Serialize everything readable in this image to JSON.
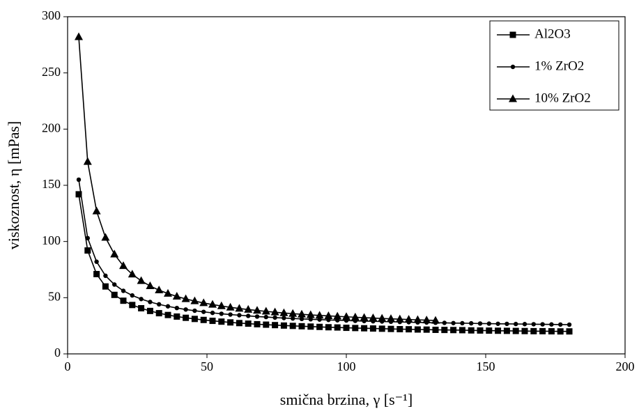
{
  "chart_data": {
    "type": "line",
    "xlabel": "smična brzina,  γ [s⁻¹]",
    "ylabel": "viskoznost,  η [mPas]",
    "xlim": [
      0,
      200
    ],
    "xticks": [
      0,
      50,
      100,
      150,
      200
    ],
    "ylim": [
      0,
      300
    ],
    "yticks": [
      0,
      50,
      100,
      150,
      200,
      250,
      300
    ],
    "legend": "upper right",
    "x": [
      4,
      7.2,
      10.4,
      13.6,
      16.8,
      20,
      23.2,
      26.4,
      29.6,
      32.8,
      36,
      39.2,
      42.4,
      45.6,
      48.8,
      52,
      55.2,
      58.4,
      61.6,
      64.8,
      68,
      71.2,
      74.4,
      77.6,
      80.8,
      84,
      87.2,
      90.4,
      93.6,
      96.8,
      100,
      103.2,
      106.4,
      109.6,
      112.8,
      116,
      119.2,
      122.4,
      125.6,
      128.8,
      132,
      135.2,
      138.4,
      141.6,
      144.8,
      148,
      151.2,
      154.4,
      157.6,
      160.8,
      164,
      167.2,
      170.4,
      173.6,
      176.8,
      180
    ],
    "series": [
      {
        "name": "Al2O3",
        "color": "#000000",
        "marker": "square",
        "values": [
          142,
          92,
          71,
          60,
          52.5,
          47.3,
          43.5,
          40.6,
          38.2,
          36.2,
          34.6,
          33.2,
          32.1,
          31.1,
          30.2,
          29.4,
          28.7,
          28,
          27.4,
          26.9,
          26.4,
          26,
          25.6,
          25.2,
          24.9,
          24.6,
          24.3,
          24,
          23.7,
          23.5,
          23.2,
          23,
          22.8,
          22.6,
          22.4,
          22.2,
          22,
          21.9,
          21.7,
          21.6,
          21.4,
          21.3,
          21.2,
          21.1,
          20.9,
          20.8,
          20.7,
          20.6,
          20.5,
          20.4,
          20.3,
          20.2,
          20.2,
          20.1,
          20,
          20
        ]
      },
      {
        "name": "1% ZrO2",
        "color": "#000000",
        "marker": "circle",
        "values": [
          155,
          103,
          82,
          69.5,
          61.7,
          56.1,
          52,
          48.8,
          46.2,
          44.1,
          42.3,
          40.8,
          39.5,
          38.4,
          37.4,
          36.5,
          35.7,
          35,
          34.4,
          33.8,
          33.2,
          32.8,
          32.3,
          31.9,
          31.5,
          31.1,
          30.8,
          30.5,
          30.2,
          29.9,
          29.7,
          29.4,
          29.2,
          29,
          28.8,
          28.6,
          28.4,
          28.2,
          28,
          27.9,
          27.7,
          27.6,
          27.4,
          27.3,
          27.2,
          27,
          26.9,
          26.8,
          26.7,
          26.6,
          26.5,
          26.4,
          26.3,
          26.2,
          26.1,
          26
        ]
      },
      {
        "name": "10% ZrO2",
        "color": "#000000",
        "marker": "triangle",
        "values": [
          282,
          171,
          127,
          103.5,
          88.6,
          78.3,
          70.8,
          65,
          60.4,
          56.7,
          53.7,
          51.1,
          48.9,
          47,
          45.3,
          43.9,
          42.6,
          41.4,
          40.4,
          39.4,
          38.6,
          37.8,
          37.1,
          36.4,
          35.8,
          35.2,
          34.7,
          34.2,
          33.8,
          33.4,
          33,
          32.6,
          32.2,
          31.9,
          31.5,
          31.2,
          30.9,
          30.6,
          30.3,
          30,
          29.7,
          null,
          null,
          null,
          null,
          null,
          null,
          null,
          null,
          null,
          null,
          null,
          null,
          null,
          null,
          null
        ]
      }
    ]
  }
}
